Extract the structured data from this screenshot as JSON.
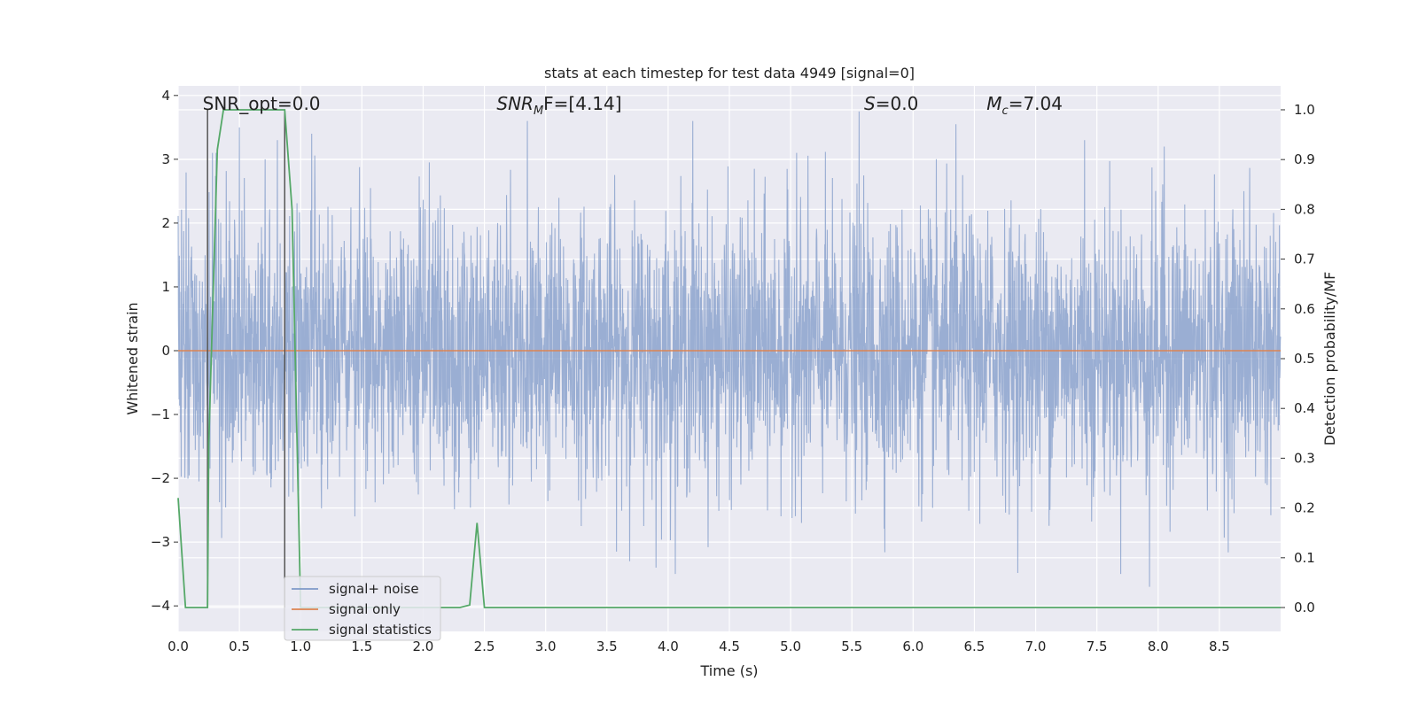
{
  "chart_data": {
    "type": "line",
    "title": "stats at each timestep for test data 4949 [signal=0]",
    "xlabel": "Time (s)",
    "ylabel": "Whitened strain",
    "y2label": "Detection probability/MF",
    "xlim": [
      0.0,
      9.0
    ],
    "ylim": [
      -4.4,
      4.15
    ],
    "y2lim": [
      -0.048,
      1.048
    ],
    "xticks": [
      "0.0",
      "0.5",
      "1.0",
      "1.5",
      "2.0",
      "2.5",
      "3.0",
      "3.5",
      "4.0",
      "4.5",
      "5.0",
      "5.5",
      "6.0",
      "6.5",
      "7.0",
      "7.5",
      "8.0",
      "8.5"
    ],
    "yticks": [
      "4",
      "3",
      "2",
      "1",
      "0",
      "−1",
      "−2",
      "−3",
      "−4"
    ],
    "y2ticks": [
      "1.0",
      "0.9",
      "0.8",
      "0.7",
      "0.6",
      "0.5",
      "0.4",
      "0.3",
      "0.2",
      "0.1",
      "0.0"
    ],
    "annotations": [
      {
        "base": "SNR_opt=0.0",
        "sub": "",
        "rest": "",
        "x": 0.2,
        "italic": false
      },
      {
        "base": "SNR",
        "sub": "M",
        "rest": "F=[4.14]",
        "x": 2.6,
        "italic": true
      },
      {
        "base": "S",
        "sub": "",
        "rest": "=0.0",
        "x": 5.6,
        "italic": true
      },
      {
        "base": "M",
        "sub": "c",
        "rest": "=7.04",
        "x": 6.6,
        "italic": true
      }
    ],
    "series": [
      {
        "name": "signal+ noise",
        "color": "#7f99c8",
        "description": "whitened noise time series, approx. Gaussian with std ~1, occasional spikes to about ±3.8",
        "t_start": 0.0,
        "t_end": 9.0,
        "spike_times": [
          0.28,
          0.31,
          0.5,
          0.71,
          0.81,
          1.09,
          2.85,
          3.9,
          4.2,
          5.56,
          5.05,
          6.35,
          7.4,
          7.93,
          8.05,
          8.7
        ],
        "spike_values": [
          3.1,
          3.1,
          3.5,
          3.0,
          3.3,
          3.4,
          3.6,
          -3.4,
          3.6,
          3.75,
          3.1,
          3.55,
          3.3,
          -3.7,
          3.2,
          2.5
        ]
      },
      {
        "name": "signal only",
        "color": "#dd8452",
        "x": [
          0.0,
          9.0
        ],
        "y": [
          0.0,
          0.0
        ]
      },
      {
        "name": "signal statistics",
        "color": "#55a868",
        "axis": "right",
        "x": [
          0.0,
          0.06,
          0.24,
          0.25,
          0.32,
          0.37,
          0.44,
          0.87,
          0.93,
          1.0,
          1.05,
          2.3,
          2.38,
          2.44,
          2.5,
          9.0
        ],
        "y": [
          0.22,
          0.0,
          0.0,
          0.33,
          0.92,
          1.0,
          1.0,
          1.0,
          0.8,
          0.0,
          0.0,
          0.0,
          0.005,
          0.17,
          0.0,
          0.0
        ]
      }
    ],
    "vlines": [
      {
        "x": 0.24,
        "ymin_prob": 0.0,
        "ymax_prob": 1.0,
        "color": "#555555"
      },
      {
        "x": 0.87,
        "ymin_prob": 0.0,
        "ymax_prob": 1.0,
        "color": "#555555"
      }
    ],
    "legend": {
      "location": "lower-left",
      "entries": [
        "signal+ noise",
        "signal only",
        "signal statistics"
      ]
    },
    "grid": true
  }
}
